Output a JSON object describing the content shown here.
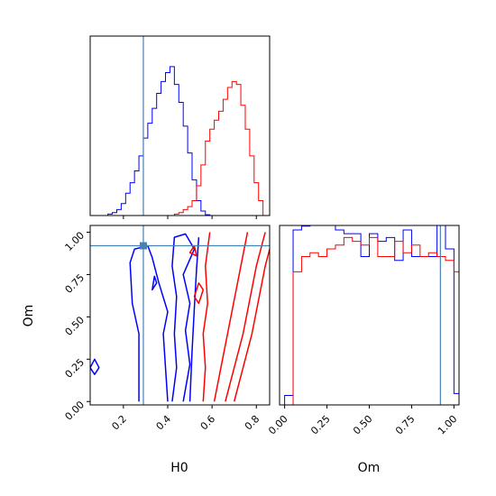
{
  "chart_data": {
    "type": "corner",
    "parameters": [
      "H0",
      "Om"
    ],
    "truth": {
      "H0": 0.29,
      "Om": 0.92
    },
    "truth_color": "#4682b4",
    "series_colors": {
      "blue": "#0000ff",
      "red": "#ff0000"
    },
    "panels": [
      {
        "id": "H0-marginal",
        "type": "histogram",
        "x_range": [
          0.05,
          0.86
        ],
        "y_range": [
          0,
          1
        ],
        "bin_width": 0.02,
        "series": [
          {
            "color_key": "blue",
            "bin_start": 0.13,
            "values": [
              0.01,
              0.02,
              0.04,
              0.08,
              0.15,
              0.22,
              0.3,
              0.4,
              0.52,
              0.62,
              0.72,
              0.82,
              0.9,
              0.96,
              1.0,
              0.88,
              0.76,
              0.6,
              0.42,
              0.24,
              0.1,
              0.03,
              0.005
            ]
          },
          {
            "color_key": "red",
            "bin_start": 0.43,
            "values": [
              0.01,
              0.02,
              0.04,
              0.06,
              0.1,
              0.2,
              0.34,
              0.5,
              0.58,
              0.64,
              0.7,
              0.78,
              0.86,
              0.9,
              0.88,
              0.74,
              0.58,
              0.4,
              0.22,
              0.1
            ]
          }
        ]
      },
      {
        "id": "Om-marginal",
        "type": "histogram",
        "x_range": [
          -0.03,
          1.03
        ],
        "x_ticks": [
          "0.00",
          "0.25",
          "0.50",
          "0.75",
          "1.00"
        ],
        "y_range": [
          0,
          1
        ],
        "bin_width": 0.05,
        "series": [
          {
            "color_key": "blue",
            "bin_start": 0.0,
            "values": [
              0.05,
              0.92,
              0.94,
              0.98,
              0.98,
              0.98,
              0.92,
              0.9,
              0.9,
              0.78,
              0.9,
              0.86,
              0.88,
              0.76,
              0.92,
              0.78,
              0.78,
              0.78,
              1.0,
              0.82,
              0.06
            ]
          },
          {
            "color_key": "red",
            "bin_start": 0.0,
            "values": [
              0.0,
              0.7,
              0.78,
              0.8,
              0.78,
              0.82,
              0.84,
              0.88,
              0.86,
              0.84,
              0.88,
              0.78,
              0.78,
              0.86,
              0.8,
              0.84,
              0.78,
              0.8,
              0.78,
              0.76,
              0.7
            ]
          }
        ]
      },
      {
        "id": "H0-Om-joint",
        "type": "contour",
        "x_range": [
          0.05,
          0.86
        ],
        "y_range": [
          -0.02,
          1.04
        ],
        "x_ticks": [
          "0.2",
          "0.4",
          "0.6",
          "0.8"
        ],
        "y_ticks": [
          "0.00",
          "0.25",
          "0.50",
          "0.75",
          "1.00"
        ],
        "xlabel": "H0",
        "ylabel": "Om",
        "contours": [
          {
            "color_key": "blue",
            "points": [
              [
                0.27,
                0.0
              ],
              [
                0.27,
                0.4
              ],
              [
                0.24,
                0.58
              ],
              [
                0.23,
                0.82
              ],
              [
                0.25,
                0.9
              ],
              [
                0.31,
                0.92
              ],
              [
                0.33,
                0.85
              ],
              [
                0.36,
                0.7
              ],
              [
                0.4,
                0.53
              ],
              [
                0.38,
                0.4
              ],
              [
                0.39,
                0.2
              ],
              [
                0.4,
                0.0
              ]
            ]
          },
          {
            "color_key": "blue",
            "points": [
              [
                0.42,
                0.0
              ],
              [
                0.44,
                0.2
              ],
              [
                0.43,
                0.4
              ],
              [
                0.44,
                0.62
              ],
              [
                0.42,
                0.8
              ],
              [
                0.43,
                0.97
              ],
              [
                0.48,
                0.99
              ],
              [
                0.52,
                0.9
              ],
              [
                0.47,
                0.75
              ],
              [
                0.5,
                0.58
              ],
              [
                0.48,
                0.42
              ],
              [
                0.5,
                0.22
              ],
              [
                0.47,
                0.0
              ]
            ]
          },
          {
            "color_key": "blue",
            "points": [
              [
                0.5,
                0.0
              ],
              [
                0.51,
                0.3
              ],
              [
                0.52,
                0.55
              ],
              [
                0.53,
                0.78
              ],
              [
                0.54,
                0.97
              ]
            ]
          },
          {
            "color_key": "blue",
            "closed": true,
            "points": [
              [
                0.07,
                0.25
              ],
              [
                0.09,
                0.2
              ],
              [
                0.07,
                0.16
              ],
              [
                0.05,
                0.2
              ]
            ]
          },
          {
            "color_key": "blue",
            "closed": true,
            "points": [
              [
                0.34,
                0.74
              ],
              [
                0.35,
                0.7
              ],
              [
                0.33,
                0.66
              ]
            ]
          },
          {
            "color_key": "red",
            "points": [
              [
                0.56,
                0.0
              ],
              [
                0.57,
                0.2
              ],
              [
                0.56,
                0.4
              ],
              [
                0.58,
                0.58
              ],
              [
                0.57,
                0.8
              ],
              [
                0.59,
                1.0
              ]
            ]
          },
          {
            "color_key": "red",
            "points": [
              [
                0.61,
                0.0
              ],
              [
                0.64,
                0.2
              ],
              [
                0.67,
                0.4
              ],
              [
                0.7,
                0.6
              ],
              [
                0.73,
                0.8
              ],
              [
                0.76,
                1.0
              ]
            ]
          },
          {
            "color_key": "red",
            "points": [
              [
                0.66,
                0.0
              ],
              [
                0.7,
                0.2
              ],
              [
                0.74,
                0.4
              ],
              [
                0.77,
                0.6
              ],
              [
                0.8,
                0.8
              ],
              [
                0.84,
                1.0
              ]
            ]
          },
          {
            "color_key": "red",
            "points": [
              [
                0.7,
                0.0
              ],
              [
                0.74,
                0.2
              ],
              [
                0.78,
                0.4
              ],
              [
                0.81,
                0.6
              ],
              [
                0.84,
                0.8
              ],
              [
                0.86,
                0.9
              ]
            ]
          },
          {
            "color_key": "red",
            "closed": true,
            "points": [
              [
                0.52,
                0.62
              ],
              [
                0.54,
                0.7
              ],
              [
                0.56,
                0.66
              ],
              [
                0.54,
                0.58
              ]
            ]
          },
          {
            "color_key": "red",
            "closed": true,
            "points": [
              [
                0.5,
                0.88
              ],
              [
                0.52,
                0.92
              ],
              [
                0.53,
                0.86
              ]
            ]
          }
        ]
      }
    ]
  }
}
